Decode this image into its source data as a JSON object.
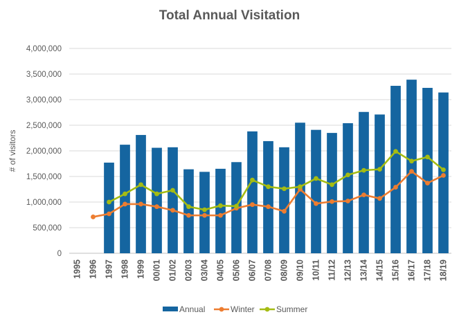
{
  "chart_data": {
    "type": "bar",
    "title": "Total Annual Visitation",
    "ylabel": "# of visitors",
    "xlabel": "",
    "ylim": [
      0,
      4000000
    ],
    "yticks": [
      0,
      500000,
      1000000,
      1500000,
      2000000,
      2500000,
      3000000,
      3500000,
      4000000
    ],
    "ytick_labels": [
      "0",
      "500,000",
      "1,000,000",
      "1,500,000",
      "2,000,000",
      "2,500,000",
      "3,000,000",
      "3,500,000",
      "4,000,000"
    ],
    "grid": true,
    "legend_position": "bottom",
    "categories": [
      "1995",
      "1996",
      "1997",
      "1998",
      "1999",
      "00/01",
      "01/02",
      "02/03",
      "03/04",
      "04/05",
      "05/06",
      "06/07",
      "07/08",
      "08/09",
      "09/10",
      "10/11",
      "11/12",
      "12/13",
      "13/14",
      "14/15",
      "15/16",
      "16/17",
      "17/18",
      "18/19"
    ],
    "series": [
      {
        "name": "Annual",
        "type": "bar",
        "color": "#1565a0",
        "values": [
          null,
          null,
          1770000,
          2120000,
          2310000,
          2060000,
          2070000,
          1640000,
          1590000,
          1650000,
          1780000,
          2380000,
          2190000,
          2070000,
          2550000,
          2410000,
          2350000,
          2540000,
          2760000,
          2710000,
          3270000,
          3390000,
          3230000,
          3140000
        ]
      },
      {
        "name": "Winter",
        "type": "line",
        "color": "#ed7d31",
        "values": [
          null,
          710000,
          770000,
          960000,
          960000,
          910000,
          840000,
          740000,
          740000,
          740000,
          880000,
          950000,
          910000,
          820000,
          1250000,
          970000,
          1010000,
          1020000,
          1140000,
          1070000,
          1290000,
          1600000,
          1370000,
          1520000
        ]
      },
      {
        "name": "Summer",
        "type": "line",
        "color": "#a5bc13",
        "values": [
          null,
          null,
          1000000,
          1160000,
          1340000,
          1160000,
          1230000,
          910000,
          850000,
          930000,
          920000,
          1430000,
          1300000,
          1260000,
          1300000,
          1460000,
          1340000,
          1530000,
          1620000,
          1640000,
          1990000,
          1800000,
          1880000,
          1630000
        ]
      }
    ]
  }
}
